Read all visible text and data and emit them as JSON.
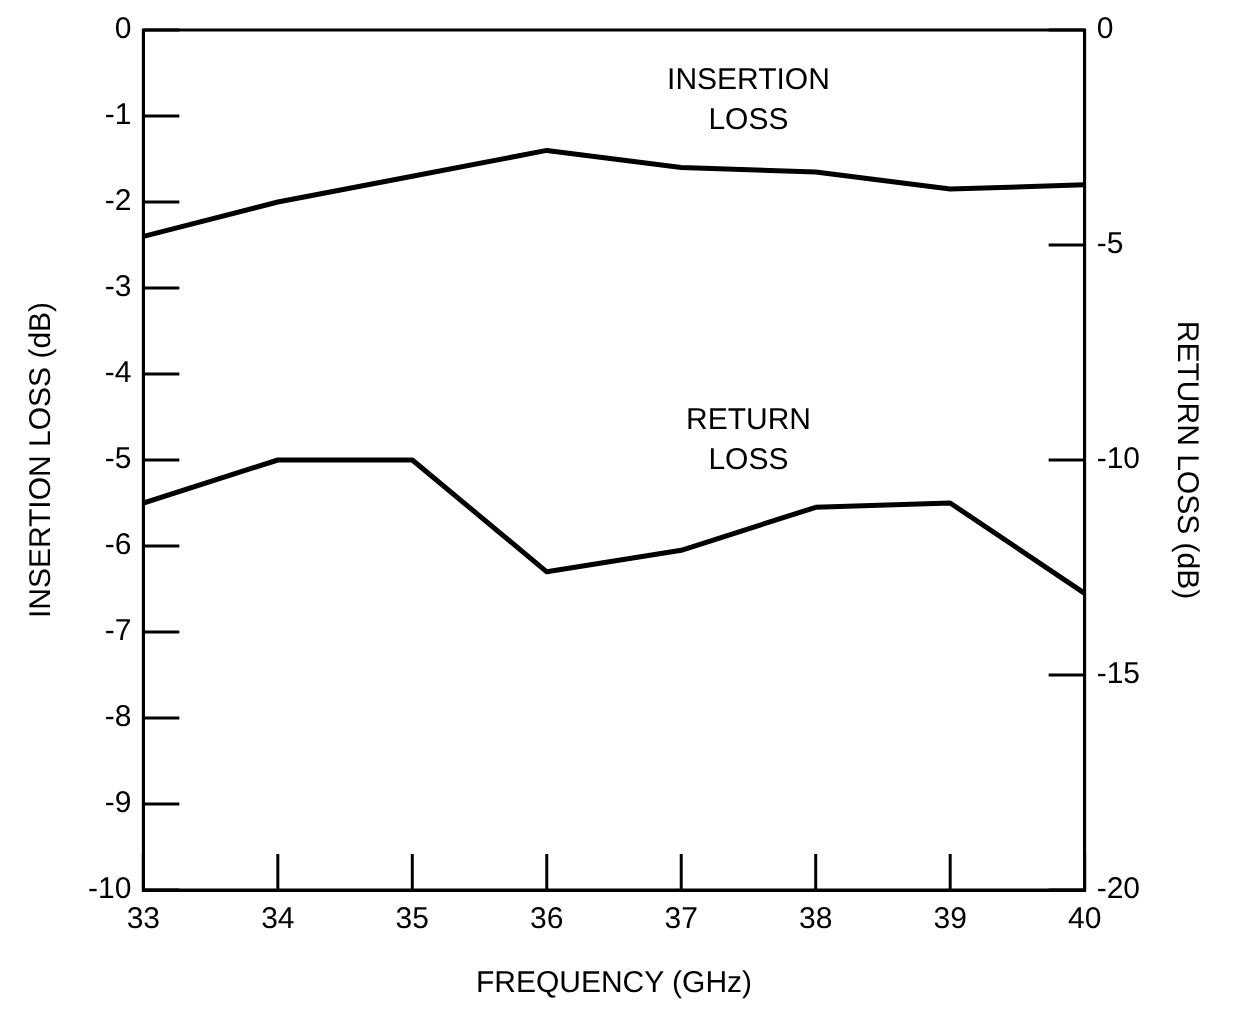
{
  "chart_data": {
    "type": "line",
    "xlabel": "FREQUENCY (GHz)",
    "ylabel": "INSERTION LOSS (dB)",
    "y2label": "RETURN LOSS (dB)",
    "x": [
      33,
      34,
      35,
      36,
      37,
      38,
      39,
      40
    ],
    "xlim": [
      33,
      40
    ],
    "xticks": [
      33,
      34,
      35,
      36,
      37,
      38,
      39,
      40
    ],
    "ylim": [
      -10,
      0
    ],
    "yticks": [
      0,
      -1,
      -2,
      -3,
      -4,
      -5,
      -6,
      -7,
      -8,
      -9,
      -10
    ],
    "y2lim": [
      -20,
      0
    ],
    "y2ticks": [
      0,
      -5,
      -10,
      -15,
      -20
    ],
    "marker": "none",
    "line_style": "solid",
    "legend": false,
    "series": [
      {
        "name": "INSERTION LOSS",
        "color": "#000000",
        "values": [
          -2.4,
          -2.0,
          -1.7,
          -1.4,
          -1.6,
          -1.65,
          -1.85,
          -1.8
        ]
      },
      {
        "name": "RETURN LOSS",
        "color": "#000000",
        "axis": "y2",
        "values": [
          -11,
          -10,
          -10,
          -12.6,
          -12.1,
          -11.1,
          -11,
          -13.1
        ]
      }
    ]
  }
}
